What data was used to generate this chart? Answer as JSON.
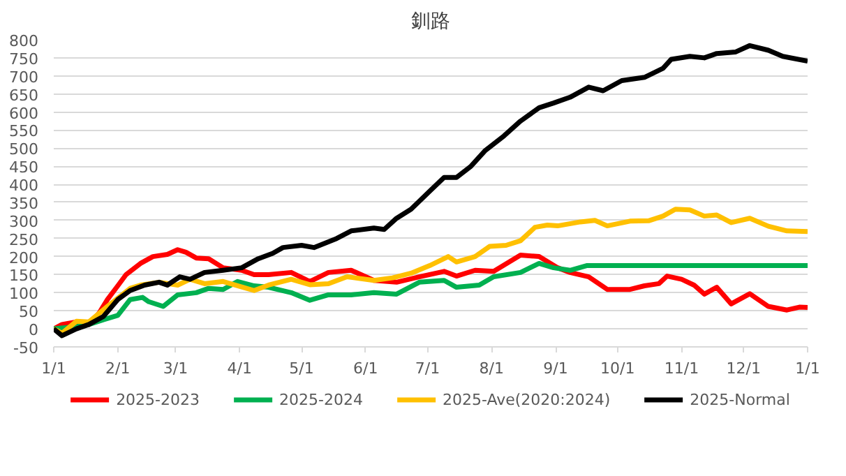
{
  "chart_data": {
    "type": "line",
    "title": "釧路",
    "xlim": [
      "2025-01-01",
      "2026-01-01"
    ],
    "xticks": [
      {
        "value": "2025-01-01",
        "label": "1/1"
      },
      {
        "value": "2025-02-01",
        "label": "2/1"
      },
      {
        "value": "2025-03-01",
        "label": "3/1"
      },
      {
        "value": "2025-04-01",
        "label": "4/1"
      },
      {
        "value": "2025-05-01",
        "label": "5/1"
      },
      {
        "value": "2025-06-01",
        "label": "6/1"
      },
      {
        "value": "2025-07-01",
        "label": "7/1"
      },
      {
        "value": "2025-08-01",
        "label": "8/1"
      },
      {
        "value": "2025-09-01",
        "label": "9/1"
      },
      {
        "value": "2025-10-01",
        "label": "10/1"
      },
      {
        "value": "2025-11-01",
        "label": "11/1"
      },
      {
        "value": "2025-12-01",
        "label": "12/1"
      },
      {
        "value": "2026-01-01",
        "label": "1/1"
      }
    ],
    "ylim": [
      -50,
      800
    ],
    "yticks": [
      -50,
      0,
      50,
      100,
      150,
      200,
      250,
      300,
      350,
      400,
      450,
      500,
      550,
      600,
      650,
      700,
      750,
      800
    ],
    "grid": "y",
    "legend": "bottom",
    "marker": "none",
    "line_style": "solid",
    "series": [
      {
        "name": "2025-2023",
        "color": "#ff0000",
        "x": [
          "2025-01-01",
          "2025-01-05",
          "2025-01-12",
          "2025-01-18",
          "2025-01-23",
          "2025-01-27",
          "2025-02-01",
          "2025-02-05",
          "2025-02-12",
          "2025-02-18",
          "2025-02-25",
          "2025-03-02",
          "2025-03-06",
          "2025-03-11",
          "2025-03-17",
          "2025-03-24",
          "2025-04-02",
          "2025-04-08",
          "2025-04-15",
          "2025-04-26",
          "2025-05-05",
          "2025-05-14",
          "2025-05-25",
          "2025-06-05",
          "2025-06-16",
          "2025-06-27",
          "2025-07-09",
          "2025-07-15",
          "2025-07-24",
          "2025-08-02",
          "2025-08-15",
          "2025-08-24",
          "2025-09-02",
          "2025-09-08",
          "2025-09-17",
          "2025-09-26",
          "2025-10-07",
          "2025-10-14",
          "2025-10-21",
          "2025-10-25",
          "2025-11-01",
          "2025-11-07",
          "2025-11-12",
          "2025-11-18",
          "2025-11-25",
          "2025-12-04",
          "2025-12-13",
          "2025-12-22",
          "2025-12-28",
          "2026-01-01"
        ],
        "values": [
          0,
          12,
          19,
          12,
          44,
          81,
          119,
          150,
          181,
          200,
          206,
          219,
          212,
          196,
          194,
          169,
          162,
          150,
          150,
          156,
          131,
          156,
          162,
          134,
          129,
          144,
          159,
          146,
          162,
          159,
          204,
          200,
          169,
          156,
          144,
          109,
          109,
          119,
          125,
          146,
          137,
          121,
          96,
          115,
          69,
          97,
          62,
          52,
          60,
          59
        ]
      },
      {
        "name": "2025-2024",
        "color": "#00b050",
        "x": [
          "2025-01-01",
          "2025-01-12",
          "2025-01-18",
          "2025-01-25",
          "2025-02-01",
          "2025-02-07",
          "2025-02-13",
          "2025-02-16",
          "2025-02-23",
          "2025-03-02",
          "2025-03-11",
          "2025-03-17",
          "2025-03-24",
          "2025-03-31",
          "2025-04-08",
          "2025-04-15",
          "2025-04-26",
          "2025-05-05",
          "2025-05-14",
          "2025-05-25",
          "2025-06-05",
          "2025-06-16",
          "2025-06-27",
          "2025-07-09",
          "2025-07-15",
          "2025-07-26",
          "2025-08-02",
          "2025-08-15",
          "2025-08-24",
          "2025-08-31",
          "2025-09-08",
          "2025-09-16",
          "2025-10-28",
          "2026-01-01"
        ],
        "values": [
          0,
          6,
          12,
          25,
          37,
          81,
          87,
          75,
          62,
          94,
          100,
          112,
          109,
          131,
          119,
          115,
          100,
          79,
          94,
          94,
          100,
          96,
          129,
          134,
          115,
          121,
          144,
          156,
          181,
          169,
          162,
          175,
          175,
          175
        ]
      },
      {
        "name": "2025-Ave(2020:2024)",
        "color": "#ffc000",
        "x": [
          "2025-01-01",
          "2025-01-05",
          "2025-01-12",
          "2025-01-18",
          "2025-01-27",
          "2025-02-07",
          "2025-02-12",
          "2025-02-21",
          "2025-03-02",
          "2025-03-08",
          "2025-03-15",
          "2025-03-24",
          "2025-04-02",
          "2025-04-08",
          "2025-04-15",
          "2025-04-26",
          "2025-05-05",
          "2025-05-14",
          "2025-05-23",
          "2025-06-05",
          "2025-06-14",
          "2025-06-23",
          "2025-07-02",
          "2025-07-11",
          "2025-07-15",
          "2025-07-24",
          "2025-07-31",
          "2025-08-08",
          "2025-08-15",
          "2025-08-22",
          "2025-08-28",
          "2025-09-02",
          "2025-09-13",
          "2025-09-20",
          "2025-09-26",
          "2025-10-07",
          "2025-10-16",
          "2025-10-23",
          "2025-10-29",
          "2025-11-05",
          "2025-11-12",
          "2025-11-18",
          "2025-11-25",
          "2025-12-04",
          "2025-12-13",
          "2025-12-22",
          "2026-01-01"
        ],
        "values": [
          0,
          -12,
          21,
          19,
          62,
          112,
          121,
          129,
          121,
          137,
          125,
          131,
          116,
          106,
          121,
          137,
          122,
          125,
          144,
          134,
          141,
          154,
          175,
          200,
          185,
          200,
          228,
          231,
          244,
          281,
          287,
          285,
          296,
          300,
          285,
          298,
          299,
          312,
          331,
          329,
          312,
          315,
          294,
          306,
          284,
          271,
          269
        ]
      },
      {
        "name": "2025-Normal",
        "color": "#000000",
        "x": [
          "2025-01-01",
          "2025-01-05",
          "2025-01-12",
          "2025-01-18",
          "2025-01-25",
          "2025-02-01",
          "2025-02-07",
          "2025-02-14",
          "2025-02-21",
          "2025-02-25",
          "2025-03-03",
          "2025-03-08",
          "2025-03-15",
          "2025-03-24",
          "2025-04-02",
          "2025-04-10",
          "2025-04-17",
          "2025-04-22",
          "2025-05-01",
          "2025-05-07",
          "2025-05-18",
          "2025-05-25",
          "2025-06-05",
          "2025-06-10",
          "2025-06-16",
          "2025-06-23",
          "2025-07-02",
          "2025-07-09",
          "2025-07-15",
          "2025-07-22",
          "2025-07-29",
          "2025-08-07",
          "2025-08-15",
          "2025-08-24",
          "2025-08-31",
          "2025-09-08",
          "2025-09-17",
          "2025-09-24",
          "2025-10-03",
          "2025-10-14",
          "2025-10-23",
          "2025-10-27",
          "2025-11-05",
          "2025-11-12",
          "2025-11-18",
          "2025-11-27",
          "2025-12-04",
          "2025-12-13",
          "2025-12-20",
          "2026-01-01"
        ],
        "values": [
          0,
          -19,
          0,
          12,
          34,
          81,
          106,
          121,
          129,
          121,
          144,
          137,
          156,
          162,
          169,
          194,
          209,
          225,
          231,
          225,
          250,
          271,
          279,
          275,
          306,
          331,
          381,
          419,
          419,
          450,
          494,
          534,
          575,
          612,
          625,
          641,
          669,
          659,
          687,
          696,
          721,
          746,
          754,
          750,
          762,
          766,
          784,
          771,
          754,
          741
        ]
      }
    ]
  }
}
